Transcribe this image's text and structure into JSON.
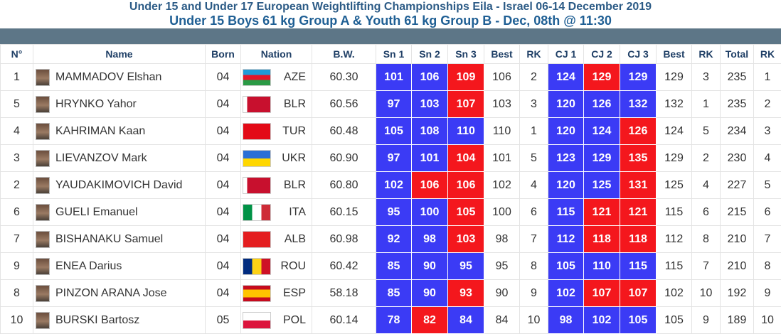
{
  "header": {
    "title": "Under 15 and Under 17 European Weightlifting Championships Eila - Israel 06-14 December 2019",
    "subtitle": "Under 15 Boys 61 kg Group A & Youth 61 kg Group B - Dec, 08th @ 11:30"
  },
  "colors": {
    "good_lift": "#3b3bf5",
    "no_lift": "#f4171d",
    "bar": "#5d7687"
  },
  "columns": [
    "N°",
    "Name",
    "Born",
    "Nation",
    "B.W.",
    "Sn 1",
    "Sn 2",
    "Sn 3",
    "Best",
    "RK",
    "CJ 1",
    "CJ 2",
    "CJ 3",
    "Best",
    "RK",
    "Total",
    "RK"
  ],
  "rows": [
    {
      "no": "1",
      "name": "MAMMADOV Elshan",
      "born": "04",
      "nation": "AZE",
      "flag": "aze",
      "bw": "60.30",
      "sn": [
        {
          "v": "101",
          "r": "good"
        },
        {
          "v": "106",
          "r": "good"
        },
        {
          "v": "109",
          "r": "bad"
        }
      ],
      "sn_best": "106",
      "sn_rk": "2",
      "cj": [
        {
          "v": "124",
          "r": "good"
        },
        {
          "v": "129",
          "r": "bad"
        },
        {
          "v": "129",
          "r": "good"
        }
      ],
      "cj_best": "129",
      "cj_rk": "3",
      "total": "235",
      "rk": "1"
    },
    {
      "no": "5",
      "name": "HRYNKO Yahor",
      "born": "04",
      "nation": "BLR",
      "flag": "blr",
      "bw": "60.56",
      "sn": [
        {
          "v": "97",
          "r": "good"
        },
        {
          "v": "103",
          "r": "good"
        },
        {
          "v": "107",
          "r": "bad"
        }
      ],
      "sn_best": "103",
      "sn_rk": "3",
      "cj": [
        {
          "v": "120",
          "r": "good"
        },
        {
          "v": "126",
          "r": "good"
        },
        {
          "v": "132",
          "r": "good"
        }
      ],
      "cj_best": "132",
      "cj_rk": "1",
      "total": "235",
      "rk": "2"
    },
    {
      "no": "4",
      "name": "KAHRIMAN Kaan",
      "born": "04",
      "nation": "TUR",
      "flag": "tur",
      "bw": "60.48",
      "sn": [
        {
          "v": "105",
          "r": "good"
        },
        {
          "v": "108",
          "r": "good"
        },
        {
          "v": "110",
          "r": "good"
        }
      ],
      "sn_best": "110",
      "sn_rk": "1",
      "cj": [
        {
          "v": "120",
          "r": "good"
        },
        {
          "v": "124",
          "r": "good"
        },
        {
          "v": "126",
          "r": "bad"
        }
      ],
      "cj_best": "124",
      "cj_rk": "5",
      "total": "234",
      "rk": "3"
    },
    {
      "no": "3",
      "name": "LIEVANZOV Mark",
      "born": "04",
      "nation": "UKR",
      "flag": "ukr",
      "bw": "60.90",
      "sn": [
        {
          "v": "97",
          "r": "good"
        },
        {
          "v": "101",
          "r": "good"
        },
        {
          "v": "104",
          "r": "bad"
        }
      ],
      "sn_best": "101",
      "sn_rk": "5",
      "cj": [
        {
          "v": "123",
          "r": "good"
        },
        {
          "v": "129",
          "r": "good"
        },
        {
          "v": "135",
          "r": "bad"
        }
      ],
      "cj_best": "129",
      "cj_rk": "2",
      "total": "230",
      "rk": "4"
    },
    {
      "no": "2",
      "name": "YAUDAKIMOVICH David",
      "born": "04",
      "nation": "BLR",
      "flag": "blr",
      "bw": "60.80",
      "sn": [
        {
          "v": "102",
          "r": "good"
        },
        {
          "v": "106",
          "r": "bad"
        },
        {
          "v": "106",
          "r": "bad"
        }
      ],
      "sn_best": "102",
      "sn_rk": "4",
      "cj": [
        {
          "v": "120",
          "r": "good"
        },
        {
          "v": "125",
          "r": "good"
        },
        {
          "v": "131",
          "r": "bad"
        }
      ],
      "cj_best": "125",
      "cj_rk": "4",
      "total": "227",
      "rk": "5"
    },
    {
      "no": "6",
      "name": "GUELI Emanuel",
      "born": "04",
      "nation": "ITA",
      "flag": "ita",
      "bw": "60.15",
      "sn": [
        {
          "v": "95",
          "r": "good"
        },
        {
          "v": "100",
          "r": "good"
        },
        {
          "v": "105",
          "r": "bad"
        }
      ],
      "sn_best": "100",
      "sn_rk": "6",
      "cj": [
        {
          "v": "115",
          "r": "good"
        },
        {
          "v": "121",
          "r": "bad"
        },
        {
          "v": "121",
          "r": "bad"
        }
      ],
      "cj_best": "115",
      "cj_rk": "6",
      "total": "215",
      "rk": "6"
    },
    {
      "no": "7",
      "name": "BISHANAKU Samuel",
      "born": "04",
      "nation": "ALB",
      "flag": "alb",
      "bw": "60.98",
      "sn": [
        {
          "v": "92",
          "r": "good"
        },
        {
          "v": "98",
          "r": "good"
        },
        {
          "v": "103",
          "r": "bad"
        }
      ],
      "sn_best": "98",
      "sn_rk": "7",
      "cj": [
        {
          "v": "112",
          "r": "good"
        },
        {
          "v": "118",
          "r": "bad"
        },
        {
          "v": "118",
          "r": "bad"
        }
      ],
      "cj_best": "112",
      "cj_rk": "8",
      "total": "210",
      "rk": "7"
    },
    {
      "no": "9",
      "name": "ENEA Darius",
      "born": "04",
      "nation": "ROU",
      "flag": "rou",
      "bw": "60.42",
      "sn": [
        {
          "v": "85",
          "r": "good"
        },
        {
          "v": "90",
          "r": "good"
        },
        {
          "v": "95",
          "r": "good"
        }
      ],
      "sn_best": "95",
      "sn_rk": "8",
      "cj": [
        {
          "v": "105",
          "r": "good"
        },
        {
          "v": "110",
          "r": "good"
        },
        {
          "v": "115",
          "r": "good"
        }
      ],
      "cj_best": "115",
      "cj_rk": "7",
      "total": "210",
      "rk": "8"
    },
    {
      "no": "8",
      "name": "PINZON ARANA Jose",
      "born": "04",
      "nation": "ESP",
      "flag": "esp",
      "bw": "58.18",
      "sn": [
        {
          "v": "85",
          "r": "good"
        },
        {
          "v": "90",
          "r": "good"
        },
        {
          "v": "93",
          "r": "bad"
        }
      ],
      "sn_best": "90",
      "sn_rk": "9",
      "cj": [
        {
          "v": "102",
          "r": "good"
        },
        {
          "v": "107",
          "r": "bad"
        },
        {
          "v": "107",
          "r": "bad"
        }
      ],
      "cj_best": "102",
      "cj_rk": "10",
      "total": "192",
      "rk": "9"
    },
    {
      "no": "10",
      "name": "BURSKI Bartosz",
      "born": "05",
      "nation": "POL",
      "flag": "pol",
      "bw": "60.14",
      "sn": [
        {
          "v": "78",
          "r": "good"
        },
        {
          "v": "82",
          "r": "bad"
        },
        {
          "v": "84",
          "r": "good"
        }
      ],
      "sn_best": "84",
      "sn_rk": "10",
      "cj": [
        {
          "v": "98",
          "r": "good"
        },
        {
          "v": "102",
          "r": "good"
        },
        {
          "v": "105",
          "r": "good"
        }
      ],
      "cj_best": "105",
      "cj_rk": "9",
      "total": "189",
      "rk": "10"
    }
  ]
}
